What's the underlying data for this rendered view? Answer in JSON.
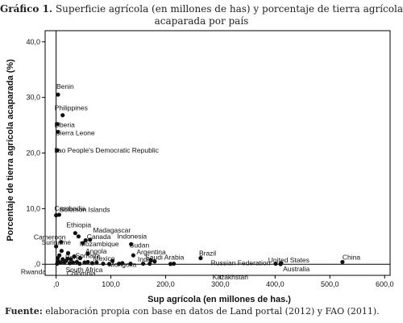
{
  "figure": {
    "number": "Gráfico 1.",
    "title_line1": "Superficie agrícola (en millones de has) y porcentaje de tierra agrícola",
    "title_line2": "acaparada por país",
    "source_label": "Fuente:",
    "source_text": "elaboración propia con base en datos de Land portal (2012) y FAO (2011)."
  },
  "chart_data": {
    "type": "scatter",
    "title": "Superficie agrícola (en millones de has) y porcentaje de tierra agrícola acaparada por país",
    "xlabel": "Sup agrícola (en millones de has.)",
    "ylabel": "Porcentaje de tierra agrícola acaparada (%)",
    "xlim": [
      -20,
      610
    ],
    "ylim": [
      -2,
      42
    ],
    "xticks": [
      0,
      100,
      200,
      300,
      400,
      500,
      600
    ],
    "xtick_labels": [
      ",0",
      "100,0",
      "200,0",
      "300,0",
      "400,0",
      "500,0",
      "600,0"
    ],
    "yticks": [
      0,
      10,
      20,
      30,
      40
    ],
    "ytick_labels": [
      ",0",
      "10,0",
      "20,0",
      "30,0",
      "40,0"
    ],
    "grid": false,
    "reference_lines": {
      "x": 0,
      "y": 0
    },
    "labeled_points": [
      {
        "label": "Benin",
        "x": 3.5,
        "y": 30.5
      },
      {
        "label": "Philippines",
        "x": 12,
        "y": 26.8
      },
      {
        "label": "Liberia",
        "x": 2.6,
        "y": 25.2
      },
      {
        "label": "Sierra Leone",
        "x": 3.4,
        "y": 23.8
      },
      {
        "label": "Lao People's Democratic Republic",
        "x": 2.4,
        "y": 20.5
      },
      {
        "label": "Cambodia",
        "x": 5.6,
        "y": 8.9
      },
      {
        "label": "Solomon Islands",
        "x": 0.1,
        "y": 8.8
      },
      {
        "label": "Ethiopia",
        "x": 35,
        "y": 5.6
      },
      {
        "label": "Madagascar",
        "x": 41,
        "y": 5.0
      },
      {
        "label": "Canada",
        "x": 62,
        "y": 4.4
      },
      {
        "label": "Indonesia",
        "x": 54,
        "y": 4.3
      },
      {
        "label": "Cameroon",
        "x": 9.2,
        "y": 4.0
      },
      {
        "label": "Mozambique",
        "x": 49,
        "y": 3.8
      },
      {
        "label": "Sudan",
        "x": 137,
        "y": 3.6
      },
      {
        "label": "Suriname",
        "x": 0.1,
        "y": 3.2
      },
      {
        "label": "Angola",
        "x": 58,
        "y": 1.9
      },
      {
        "label": "Argentina",
        "x": 141,
        "y": 1.6
      },
      {
        "label": "Brazil",
        "x": 264,
        "y": 1.1
      },
      {
        "label": "Peru",
        "x": 21,
        "y": 1.0
      },
      {
        "label": "Somalia",
        "x": 44,
        "y": 1.1
      },
      {
        "label": "Mexico",
        "x": 103,
        "y": 0.6
      },
      {
        "label": "India",
        "x": 180,
        "y": 0.5
      },
      {
        "label": "Saudi Arabia",
        "x": 173,
        "y": 0.7
      },
      {
        "label": "Mongolia",
        "x": 115,
        "y": 0.1
      },
      {
        "label": "Russian Federation",
        "x": 215,
        "y": 0.1
      },
      {
        "label": "United States",
        "x": 411,
        "y": 0.2
      },
      {
        "label": "China",
        "x": 523,
        "y": 0.4
      },
      {
        "label": "Rwanda",
        "x": 1.9,
        "y": 0.1
      },
      {
        "label": "Colombia",
        "x": 43,
        "y": 0.1
      },
      {
        "label": "South Africa",
        "x": 97,
        "y": 0.05
      },
      {
        "label": "Kazakhstan",
        "x": 209,
        "y": 0.05
      },
      {
        "label": "Australia",
        "x": 410,
        "y": 0.03
      }
    ],
    "unlabeled_points": [
      {
        "x": 6,
        "y": 1.6
      },
      {
        "x": 3,
        "y": 1.1
      },
      {
        "x": 12,
        "y": 0.9
      },
      {
        "x": 18,
        "y": 0.6
      },
      {
        "x": 27,
        "y": 0.9
      },
      {
        "x": 8,
        "y": 0.3
      },
      {
        "x": 15,
        "y": 0.3
      },
      {
        "x": 25,
        "y": 0.2
      },
      {
        "x": 31,
        "y": 0.3
      },
      {
        "x": 38,
        "y": 0.4
      },
      {
        "x": 52,
        "y": 0.3
      },
      {
        "x": 58,
        "y": 0.4
      },
      {
        "x": 66,
        "y": 0.2
      },
      {
        "x": 74,
        "y": 0.3
      },
      {
        "x": 86,
        "y": 0.1
      },
      {
        "x": 121,
        "y": 0.2
      },
      {
        "x": 136,
        "y": 0.1
      },
      {
        "x": 159,
        "y": 0.1
      },
      {
        "x": 171,
        "y": 0.1
      },
      {
        "x": 401,
        "y": 0.1
      },
      {
        "x": 4,
        "y": 0.5
      },
      {
        "x": 22,
        "y": 2.0
      },
      {
        "x": 33,
        "y": 1.4
      },
      {
        "x": 10,
        "y": 2.4
      }
    ]
  }
}
